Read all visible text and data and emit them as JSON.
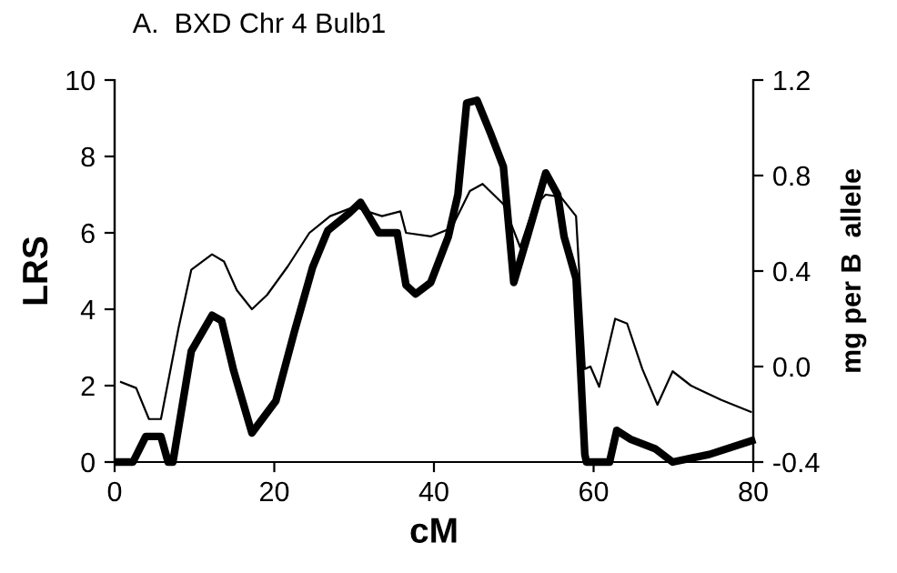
{
  "chart_data": {
    "type": "line",
    "title": "A.  BXD Chr 4 Bulb1",
    "xlabel": "cM",
    "ylabel": "LRS",
    "y2label": "mg per B  allele",
    "xlim": [
      0,
      80
    ],
    "xticks": [
      0,
      20,
      40,
      60,
      80
    ],
    "ylim": [
      0,
      10
    ],
    "yticks": [
      0,
      2,
      4,
      6,
      8,
      10
    ],
    "y2lim": [
      -0.4,
      1.2
    ],
    "y2ticks": [
      {
        "value": -0.4,
        "label": "-0.4"
      },
      {
        "value": 0,
        "label": "0.0"
      },
      {
        "value": 0.4,
        "label": "0.4"
      },
      {
        "value": 0.8,
        "label": "0.8"
      },
      {
        "value": 1.2,
        "label": "1.2"
      }
    ],
    "grid": false,
    "marker": "none",
    "line_style": "solid",
    "series": [
      {
        "color": "#000000",
        "x": [
          0.5,
          2.3,
          3.9,
          5.8,
          6.7,
          7.3,
          9.6,
          12.2,
          13.4,
          14.9,
          17.2,
          20.2,
          22.5,
          24.8,
          26.7,
          29.3,
          30.8,
          33.1,
          35.4,
          36.5,
          37.7,
          39.6,
          41.8,
          43.0,
          44.1,
          45.4,
          47.1,
          48.7,
          50.0,
          51.7,
          54.0,
          55.5,
          56.3,
          57.8,
          58.9,
          59.1,
          62.0,
          62.9,
          64.6,
          67.7,
          69.9,
          74.5,
          79.8
        ],
        "values": [
          0,
          0,
          0.67,
          0.67,
          0,
          0,
          2.9,
          3.84,
          3.7,
          2.4,
          0.76,
          1.6,
          3.4,
          5.1,
          6.06,
          6.5,
          6.8,
          6.0,
          6.0,
          4.63,
          4.4,
          4.7,
          5.9,
          7.0,
          9.4,
          9.47,
          8.6,
          7.73,
          4.7,
          5.9,
          7.57,
          7.0,
          5.9,
          4.8,
          0.2,
          0,
          0,
          0.83,
          0.6,
          0.35,
          0,
          0.2,
          0.56
        ]
      },
      {
        "color": "#000000",
        "axis": "y2",
        "x": [
          0.8,
          2.7,
          4.3,
          5.8,
          8.0,
          9.6,
          12.2,
          13.7,
          15.3,
          17.2,
          19.1,
          21.7,
          24.4,
          27.0,
          30.1,
          31.6,
          33.5,
          35.8,
          36.5,
          39.6,
          42.2,
          44.5,
          46.1,
          48.7,
          50.8,
          52.5,
          54.0,
          55.9,
          57.8,
          58.9,
          59.6,
          60.7,
          62.7,
          64.2,
          66.1,
          68.0,
          69.9,
          72.2,
          76.0,
          79.7
        ],
        "values": [
          -0.065,
          -0.09,
          -0.22,
          -0.22,
          0.16,
          0.405,
          0.47,
          0.44,
          0.32,
          0.24,
          0.3,
          0.42,
          0.56,
          0.63,
          0.67,
          0.65,
          0.63,
          0.65,
          0.56,
          0.545,
          0.58,
          0.735,
          0.765,
          0.68,
          0.5,
          0.67,
          0.72,
          0.71,
          0.63,
          -0.01,
          0,
          -0.085,
          0.2,
          0.18,
          -0.01,
          -0.16,
          -0.02,
          -0.08,
          -0.14,
          -0.19
        ]
      }
    ]
  }
}
